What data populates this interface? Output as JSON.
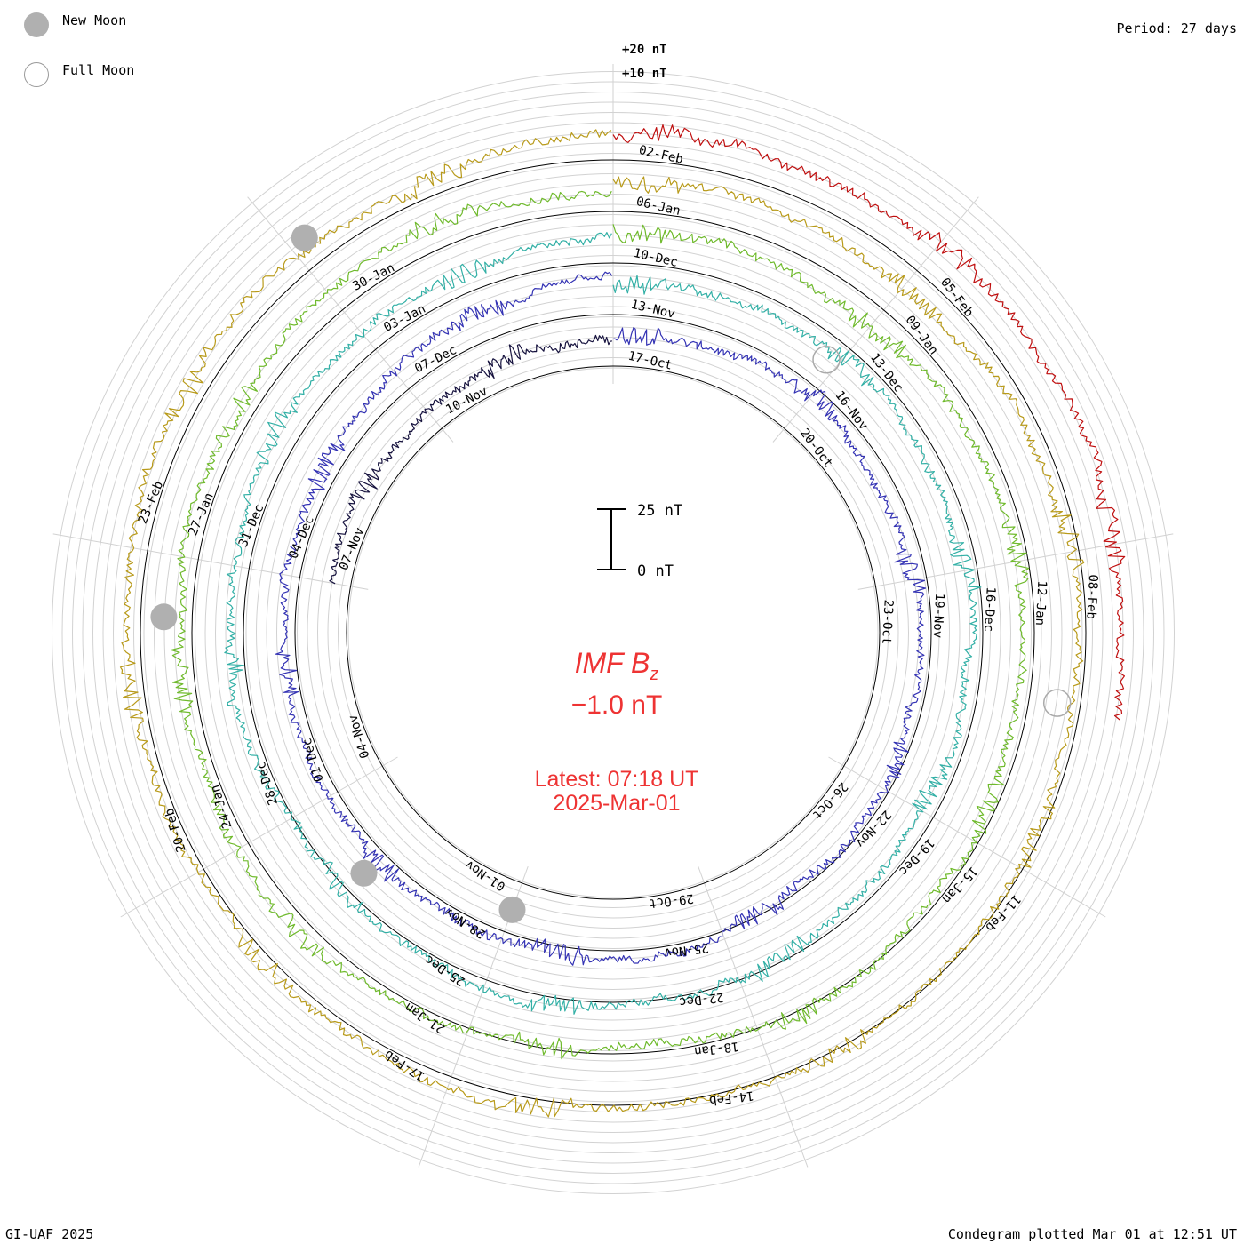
{
  "chart_data": {
    "type": "condegram",
    "title": "IMF B",
    "title_sub": "z",
    "current_value": "−1.0 nT",
    "latest": "Latest: 07:18 UT",
    "latest_date": "2025-Mar-01",
    "period": "Period: 27 days",
    "footer_left": "GI-UAF 2025",
    "footer_right": "Condegram plotted Mar 01 at 12:51 UT",
    "legend": [
      {
        "name": "New Moon",
        "fill": "#b0b0b0"
      },
      {
        "name": "Full Moon",
        "fill": "none"
      }
    ],
    "scale_labels": [
      "+20 nT",
      "+10 nT"
    ],
    "scale_bar": {
      "top": "25 nT",
      "bottom": "0 nT"
    },
    "rotations": [
      {
        "color": "#16123e",
        "ticks": [
          {
            "label": "17-Oct",
            "deg": 0
          },
          {
            "label": "20-Oct",
            "deg": 40
          },
          {
            "label": "23-Oct",
            "deg": 80
          },
          {
            "label": "26-Oct",
            "deg": 120
          },
          {
            "label": "29-Oct",
            "deg": 160
          },
          {
            "label": "01-Nov",
            "deg": 200
          },
          {
            "label": "04-Nov",
            "deg": 240
          },
          {
            "label": "07-Nov",
            "deg": 280
          },
          {
            "label": "10-Nov",
            "deg": 320
          }
        ]
      },
      {
        "color": "#3433b4",
        "ticks": [
          {
            "label": "13-Nov",
            "deg": 0
          },
          {
            "label": "16-Nov",
            "deg": 40
          },
          {
            "label": "19-Nov",
            "deg": 80
          },
          {
            "label": "22-Nov",
            "deg": 120
          },
          {
            "label": "25-Nov",
            "deg": 160
          },
          {
            "label": "28-Nov",
            "deg": 200
          },
          {
            "label": "01-Dec",
            "deg": 240
          },
          {
            "label": "04-Dec",
            "deg": 280
          },
          {
            "label": "07-Dec",
            "deg": 320
          }
        ]
      },
      {
        "color": "#33b0a6",
        "ticks": [
          {
            "label": "10-Dec",
            "deg": 0
          },
          {
            "label": "13-Dec",
            "deg": 40
          },
          {
            "label": "16-Dec",
            "deg": 80
          },
          {
            "label": "19-Dec",
            "deg": 120
          },
          {
            "label": "22-Dec",
            "deg": 160
          },
          {
            "label": "25-Dec",
            "deg": 200
          },
          {
            "label": "28-Dec",
            "deg": 240
          },
          {
            "label": "31-Dec",
            "deg": 280
          },
          {
            "label": "03-Jan",
            "deg": 320
          }
        ]
      },
      {
        "color": "#6fba2c",
        "ticks": [
          {
            "label": "06-Jan",
            "deg": 0
          },
          {
            "label": "09-Jan",
            "deg": 40
          },
          {
            "label": "12-Jan",
            "deg": 80
          },
          {
            "label": "15-Jan",
            "deg": 120
          },
          {
            "label": "18-Jan",
            "deg": 160
          },
          {
            "label": "21-Jan",
            "deg": 200
          },
          {
            "label": "24-Jan",
            "deg": 240
          },
          {
            "label": "27-Jan",
            "deg": 280
          },
          {
            "label": "30-Jan",
            "deg": 320
          }
        ]
      },
      {
        "color": "#b89a1a",
        "ticks": [
          {
            "label": "02-Feb",
            "deg": 0
          },
          {
            "label": "05-Feb",
            "deg": 40
          },
          {
            "label": "08-Feb",
            "deg": 80
          },
          {
            "label": "11-Feb",
            "deg": 120
          },
          {
            "label": "14-Feb",
            "deg": 160
          },
          {
            "label": "17-Feb",
            "deg": 200
          },
          {
            "label": "20-Feb",
            "deg": 240
          },
          {
            "label": "23-Feb",
            "deg": 280
          }
        ]
      },
      {
        "color": "#c01010",
        "ticks": []
      }
    ],
    "moons": [
      {
        "type": "new",
        "rotation": 5,
        "deg": 322
      },
      {
        "type": "new",
        "rotation": 4,
        "deg": 272
      },
      {
        "type": "new",
        "rotation": 2,
        "deg": 226
      },
      {
        "type": "new",
        "rotation": 1,
        "deg": 200
      },
      {
        "type": "full",
        "rotation": 2,
        "deg": 38
      },
      {
        "type": "full",
        "rotation": 4,
        "deg": 99
      }
    ]
  }
}
